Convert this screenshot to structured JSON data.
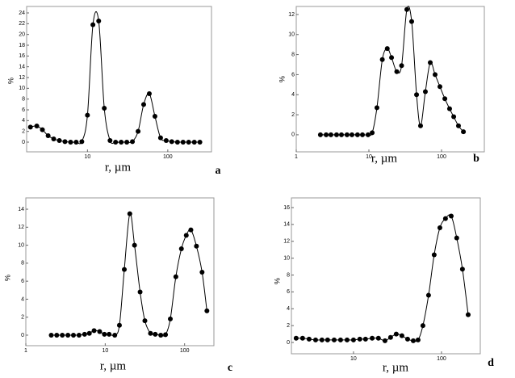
{
  "chart_data": [
    {
      "type": "line",
      "x_label": "r, µm",
      "y_label": "%",
      "label": "a",
      "log_x": true,
      "color": "#000000",
      "xlim": [
        1.75,
        350
      ],
      "xticks": [
        10,
        100
      ],
      "ylim": [
        -1.8,
        25.2
      ],
      "yticks": [
        0,
        2,
        4,
        6,
        8,
        10,
        12,
        14,
        16,
        18,
        20,
        22,
        24
      ],
      "x": [
        1.95,
        2.34,
        2.75,
        3.24,
        3.8,
        4.47,
        5.25,
        6.17,
        7.24,
        8.51,
        10,
        11.7,
        13.8,
        16.2,
        19.1,
        22.4,
        26.3,
        30.9,
        36.3,
        42.7,
        50.1,
        58.9,
        69.2,
        81.3,
        95.5,
        112,
        132,
        155,
        182,
        214,
        251
      ],
      "values": [
        2.8,
        3.0,
        2.3,
        1.2,
        0.6,
        0.3,
        0.1,
        0,
        0,
        0.1,
        5.0,
        21.8,
        22.5,
        6.3,
        0.3,
        0,
        0,
        0,
        0.1,
        2.0,
        7.0,
        9.0,
        4.8,
        0.8,
        0.3,
        0.1,
        0,
        0,
        0,
        0,
        0
      ]
    },
    {
      "type": "line",
      "x_label": "r, µm",
      "y_label": "%",
      "label": "b",
      "log_x": true,
      "color": "#000000",
      "xlim": [
        1,
        388
      ],
      "xticks": [
        1,
        10,
        100
      ],
      "ylim": [
        -1.7,
        12.8
      ],
      "yticks": [
        0,
        2,
        4,
        6,
        8,
        10,
        12
      ],
      "x": [
        2.15,
        2.58,
        3.0,
        3.59,
        4.19,
        5.0,
        5.84,
        6.97,
        8.15,
        9.73,
        11.1,
        12.9,
        15.3,
        17.9,
        20.5,
        24.2,
        28.2,
        33.3,
        38.8,
        45.3,
        51.4,
        59.9,
        69.9,
        81.5,
        95,
        111,
        129,
        147,
        171,
        200
      ],
      "values": [
        0,
        0,
        0,
        0,
        0,
        0,
        0,
        0,
        0,
        0,
        0.2,
        2.7,
        7.5,
        8.6,
        7.7,
        6.3,
        6.9,
        12.5,
        11.3,
        4.0,
        0.9,
        4.3,
        7.2,
        6.0,
        4.8,
        3.6,
        2.6,
        1.8,
        0.9,
        0.3
      ]
    },
    {
      "type": "line",
      "x_label": "r, µm",
      "y_label": "%",
      "label": "c",
      "log_x": true,
      "color": "#000000",
      "xlim": [
        1,
        234
      ],
      "xticks": [
        1,
        10,
        100
      ],
      "ylim": [
        -1.17,
        15.26
      ],
      "yticks": [
        0,
        2,
        4,
        6,
        8,
        10,
        12,
        14
      ],
      "x": [
        2.09,
        2.45,
        2.88,
        3.39,
        3.98,
        4.68,
        5.5,
        6.31,
        7.24,
        8.51,
        9.77,
        11.2,
        13.2,
        15.1,
        17.4,
        20.4,
        23.4,
        27.5,
        31.6,
        37.2,
        42.7,
        50.1,
        57.5,
        66.1,
        77.6,
        91.2,
        105,
        120,
        141,
        166,
        191
      ],
      "values": [
        0,
        0,
        0,
        0,
        0,
        0,
        0.1,
        0.2,
        0.5,
        0.4,
        0.1,
        0.1,
        0,
        1.1,
        7.3,
        13.5,
        10.0,
        4.8,
        1.6,
        0.2,
        0.1,
        0,
        0.05,
        1.8,
        6.5,
        9.6,
        11.1,
        11.7,
        9.9,
        7.0,
        2.7
      ]
    },
    {
      "type": "line",
      "x_label": "r, µm",
      "y_label": "%",
      "label": "d",
      "log_x": true,
      "color": "#000000",
      "xlim": [
        1.97,
        276
      ],
      "xticks": [
        10,
        100
      ],
      "ylim": [
        -1.34,
        17.15
      ],
      "yticks": [
        0,
        2,
        4,
        6,
        8,
        10,
        12,
        14,
        16
      ],
      "x": [
        2.23,
        2.64,
        3.13,
        3.71,
        4.38,
        5.08,
        6.03,
        7.13,
        8.45,
        10,
        11.8,
        13.7,
        16.3,
        19.2,
        22.8,
        26.4,
        30.6,
        35.5,
        41.2,
        47.8,
        54.2,
        61.5,
        71.3,
        82.6,
        95.9,
        111,
        129,
        149,
        173,
        201
      ],
      "values": [
        0.5,
        0.5,
        0.4,
        0.3,
        0.3,
        0.3,
        0.3,
        0.3,
        0.3,
        0.3,
        0.4,
        0.4,
        0.5,
        0.5,
        0.2,
        0.6,
        1.0,
        0.8,
        0.4,
        0.2,
        0.3,
        2.0,
        5.6,
        10.4,
        13.6,
        14.7,
        15.0,
        12.4,
        8.7,
        3.3
      ]
    }
  ]
}
